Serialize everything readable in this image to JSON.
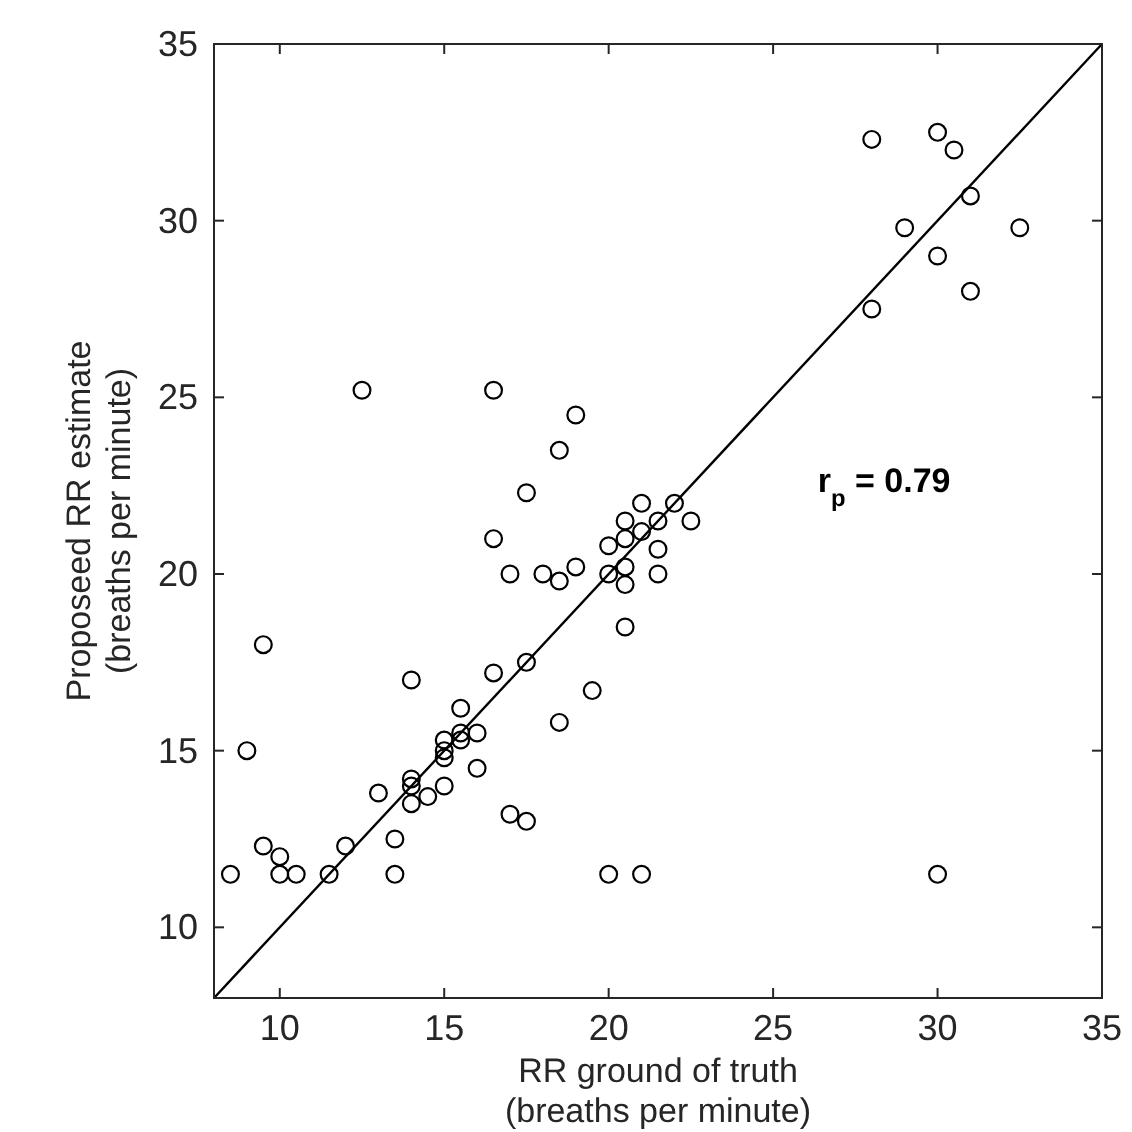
{
  "chart_data": {
    "type": "scatter",
    "xlabel": "RR ground of truth\n(breaths per minute)",
    "ylabel": "Proposeed RR estimate\n(breaths per minute)",
    "xlim": [
      8,
      35
    ],
    "ylim": [
      8,
      35
    ],
    "xticks": [
      10,
      15,
      20,
      25,
      30,
      35
    ],
    "yticks": [
      10,
      15,
      20,
      25,
      30,
      35
    ],
    "grid": false,
    "marker": "circle",
    "annotations": [
      "r$_{p}$ = 0.79"
    ],
    "series": [
      {
        "type": "scatter",
        "color": "#000000",
        "x": [
          28,
          30,
          30.5,
          31,
          29,
          32.5,
          30,
          31,
          28,
          12.5,
          16.5,
          19,
          18.5,
          17.5,
          21,
          22,
          20.5,
          21.5,
          22.5,
          16.5,
          20.5,
          21,
          20,
          21.5,
          19,
          17,
          18,
          18.5,
          20,
          20.5,
          20.5,
          21.5,
          20.5,
          19.5,
          18.5,
          17.5,
          16.5,
          9.5,
          14,
          9,
          15.5,
          15,
          15,
          15.5,
          15.5,
          16,
          16,
          15,
          15,
          14,
          14,
          14,
          14.5,
          13,
          17,
          17.5,
          13.5,
          12,
          9.5,
          10,
          8.5,
          10,
          10.5,
          11.5,
          13.5,
          20,
          21,
          30
        ],
        "values": [
          32.3,
          32.5,
          32,
          30.7,
          29.8,
          29.8,
          29,
          28,
          27.5,
          25.2,
          25.2,
          24.5,
          23.5,
          22.3,
          22,
          22,
          21.5,
          21.5,
          21.5,
          21,
          21,
          21.2,
          20.8,
          20.7,
          20.2,
          20,
          20,
          19.8,
          20,
          20.2,
          19.7,
          20,
          18.5,
          16.7,
          15.8,
          17.5,
          17.2,
          18,
          17,
          15,
          16.2,
          15.3,
          15,
          15.5,
          15.3,
          15.5,
          14.5,
          14.8,
          14,
          14.2,
          14,
          13.5,
          13.7,
          13.8,
          13.2,
          13,
          12.5,
          12.3,
          12.3,
          12,
          11.5,
          11.5,
          11.5,
          11.5,
          11.5,
          11.5,
          11.5,
          11.5
        ]
      },
      {
        "type": "line",
        "color": "#000000",
        "marker": "none",
        "line_style": "solid",
        "x": [
          8,
          35
        ],
        "values": [
          8,
          35
        ]
      }
    ]
  }
}
